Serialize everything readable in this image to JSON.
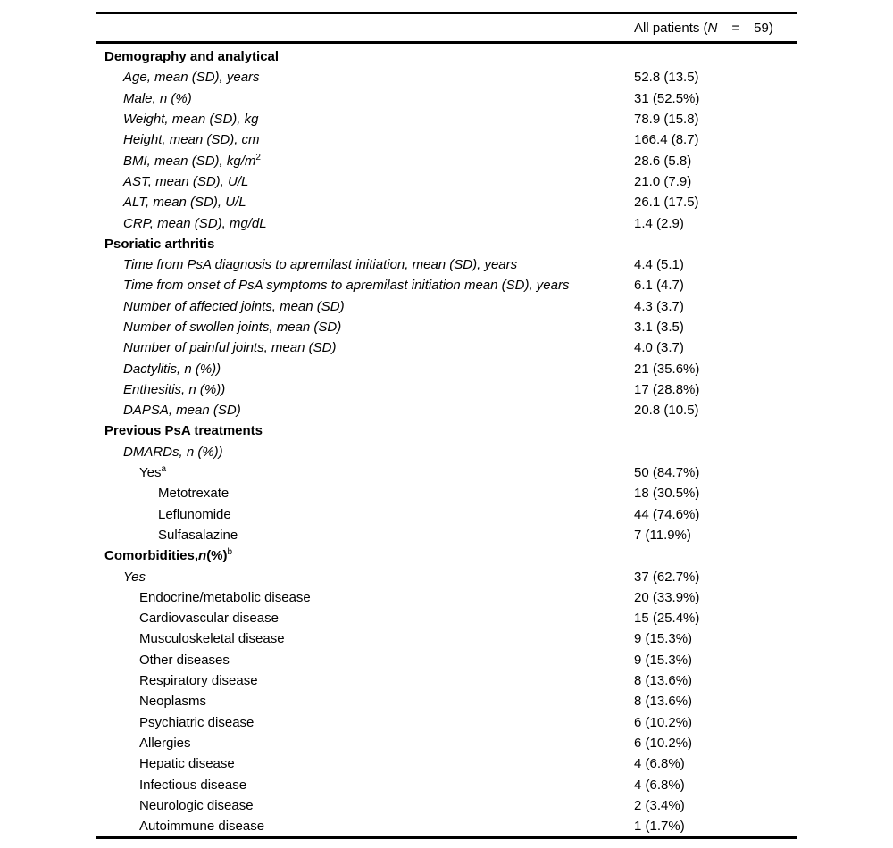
{
  "colors": {
    "text": "#000000",
    "background": "#ffffff",
    "rule": "#000000"
  },
  "header": {
    "column_label_prefix": "All patients (",
    "column_label_n": "N",
    "column_label_eq": "=",
    "column_label_count": "59)"
  },
  "table": {
    "rows": [
      {
        "label": "Demography and analytical",
        "value": "",
        "level": 0,
        "bold": true,
        "italic": false
      },
      {
        "label": "Age, mean (SD), years",
        "value": "52.8 (13.5)",
        "level": 1,
        "bold": false,
        "italic": true
      },
      {
        "label": "Male, n (%)",
        "value": "31 (52.5%)",
        "level": 1,
        "bold": false,
        "italic": true
      },
      {
        "label": "Weight, mean (SD), kg",
        "value": "78.9 (15.8)",
        "level": 1,
        "bold": false,
        "italic": true
      },
      {
        "label": "Height, mean (SD), cm",
        "value": "166.4 (8.7)",
        "level": 1,
        "bold": false,
        "italic": true
      },
      {
        "label": "BMI, mean (SD), kg/m",
        "sup": "2",
        "value": "28.6 (5.8)",
        "level": 1,
        "bold": false,
        "italic": true
      },
      {
        "label": "AST, mean (SD), U/L",
        "value": "21.0 (7.9)",
        "level": 1,
        "bold": false,
        "italic": true
      },
      {
        "label": "ALT, mean (SD), U/L",
        "value": "26.1 (17.5)",
        "level": 1,
        "bold": false,
        "italic": true
      },
      {
        "label": "CRP, mean (SD), mg/dL",
        "value": "1.4 (2.9)",
        "level": 1,
        "bold": false,
        "italic": true
      },
      {
        "label": "Psoriatic arthritis",
        "value": "",
        "level": 0,
        "bold": true,
        "italic": false
      },
      {
        "label": "Time from PsA diagnosis to apremilast initiation, mean (SD), years",
        "value": "4.4 (5.1)",
        "level": 1,
        "bold": false,
        "italic": true
      },
      {
        "label": "Time from onset of PsA symptoms to apremilast initiation mean (SD), years",
        "value": "6.1 (4.7)",
        "level": 1,
        "bold": false,
        "italic": true
      },
      {
        "label": "Number of affected joints, mean (SD)",
        "value": "4.3 (3.7)",
        "level": 1,
        "bold": false,
        "italic": true
      },
      {
        "label": "Number of swollen joints, mean (SD)",
        "value": "3.1 (3.5)",
        "level": 1,
        "bold": false,
        "italic": true
      },
      {
        "label": "Number of painful joints, mean (SD)",
        "value": "4.0 (3.7)",
        "level": 1,
        "bold": false,
        "italic": true
      },
      {
        "label": "Dactylitis, n (%))",
        "value": "21 (35.6%)",
        "level": 1,
        "bold": false,
        "italic": true
      },
      {
        "label": "Enthesitis, n (%))",
        "value": "17 (28.8%)",
        "level": 1,
        "bold": false,
        "italic": true
      },
      {
        "label": "DAPSA, mean (SD)",
        "value": "20.8 (10.5)",
        "level": 1,
        "bold": false,
        "italic": true
      },
      {
        "label": "Previous PsA treatments",
        "value": "",
        "level": 0,
        "bold": true,
        "italic": false
      },
      {
        "label": "DMARDs, n (%))",
        "value": "",
        "level": 1,
        "bold": false,
        "italic": true
      },
      {
        "label": "Yes",
        "sup": "a",
        "value": "50 (84.7%)",
        "level": 2,
        "bold": false,
        "italic": false
      },
      {
        "label": "Metotrexate",
        "value": "18 (30.5%)",
        "level": 3,
        "bold": false,
        "italic": false
      },
      {
        "label": "Leflunomide",
        "value": "44 (74.6%)",
        "level": 3,
        "bold": false,
        "italic": false
      },
      {
        "label": "Sulfasalazine",
        "value": "7 (11.9%)",
        "level": 3,
        "bold": false,
        "italic": false
      },
      {
        "label_parts": [
          {
            "text": "Comorbidities,",
            "bold": true,
            "italic": false
          },
          {
            "text": "n",
            "bold": true,
            "italic": true
          },
          {
            "text": "(%)",
            "bold": true,
            "italic": false
          },
          {
            "text": "b",
            "sup": true
          }
        ],
        "value": "",
        "level": 0,
        "bold": true,
        "italic": false
      },
      {
        "label": "Yes",
        "value": "37 (62.7%)",
        "level": 1,
        "bold": false,
        "italic": true
      },
      {
        "label": "Endocrine/metabolic disease",
        "value": "20 (33.9%)",
        "level": 2,
        "bold": false,
        "italic": false
      },
      {
        "label": "Cardiovascular disease",
        "value": "15 (25.4%)",
        "level": 2,
        "bold": false,
        "italic": false
      },
      {
        "label": "Musculoskeletal disease",
        "value": "9 (15.3%)",
        "level": 2,
        "bold": false,
        "italic": false
      },
      {
        "label": "Other diseases",
        "value": "9 (15.3%)",
        "level": 2,
        "bold": false,
        "italic": false
      },
      {
        "label": "Respiratory disease",
        "value": "8 (13.6%)",
        "level": 2,
        "bold": false,
        "italic": false
      },
      {
        "label": "Neoplasms",
        "value": "8 (13.6%)",
        "level": 2,
        "bold": false,
        "italic": false
      },
      {
        "label": "Psychiatric disease",
        "value": "6 (10.2%)",
        "level": 2,
        "bold": false,
        "italic": false
      },
      {
        "label": "Allergies",
        "value": "6 (10.2%)",
        "level": 2,
        "bold": false,
        "italic": false
      },
      {
        "label": "Hepatic disease",
        "value": "4 (6.8%)",
        "level": 2,
        "bold": false,
        "italic": false
      },
      {
        "label": "Infectious disease",
        "value": "4 (6.8%)",
        "level": 2,
        "bold": false,
        "italic": false
      },
      {
        "label": "Neurologic disease",
        "value": "2 (3.4%)",
        "level": 2,
        "bold": false,
        "italic": false
      },
      {
        "label": "Autoimmune disease",
        "value": "1 (1.7%)",
        "level": 2,
        "bold": false,
        "italic": false
      }
    ]
  }
}
